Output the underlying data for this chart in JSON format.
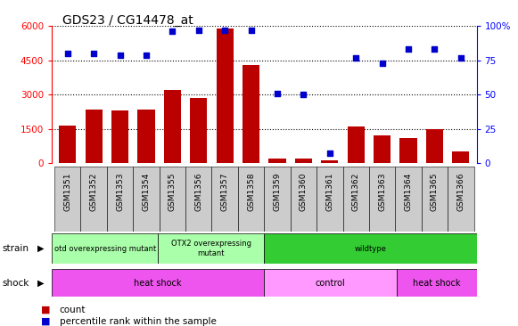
{
  "title": "GDS23 / CG14478_at",
  "samples": [
    "GSM1351",
    "GSM1352",
    "GSM1353",
    "GSM1354",
    "GSM1355",
    "GSM1356",
    "GSM1357",
    "GSM1358",
    "GSM1359",
    "GSM1360",
    "GSM1361",
    "GSM1362",
    "GSM1363",
    "GSM1364",
    "GSM1365",
    "GSM1366"
  ],
  "counts": [
    1650,
    2350,
    2300,
    2350,
    3200,
    2850,
    5900,
    4300,
    200,
    200,
    100,
    1600,
    1200,
    1100,
    1500,
    500
  ],
  "percentiles": [
    80,
    80,
    79,
    79,
    96,
    97,
    97,
    97,
    51,
    50,
    7,
    77,
    73,
    83,
    83,
    77
  ],
  "ylim_left": [
    0,
    6000
  ],
  "ylim_right": [
    0,
    100
  ],
  "yticks_left": [
    0,
    1500,
    3000,
    4500,
    6000
  ],
  "yticks_right": [
    0,
    25,
    50,
    75,
    100
  ],
  "bar_color": "#BB0000",
  "dot_color": "#0000CC",
  "xtick_bg": "#CCCCCC",
  "strain_groups": [
    {
      "label": "otd overexpressing mutant",
      "start": 0,
      "end": 4,
      "color": "#AAFFAA"
    },
    {
      "label": "OTX2 overexpressing\nmutant",
      "start": 4,
      "end": 8,
      "color": "#AAFFAA"
    },
    {
      "label": "wildtype",
      "start": 8,
      "end": 16,
      "color": "#33CC33"
    }
  ],
  "shock_groups": [
    {
      "label": "heat shock",
      "start": 0,
      "end": 8,
      "color": "#EE55EE"
    },
    {
      "label": "control",
      "start": 8,
      "end": 13,
      "color": "#FF99FF"
    },
    {
      "label": "heat shock",
      "start": 13,
      "end": 16,
      "color": "#EE55EE"
    }
  ]
}
